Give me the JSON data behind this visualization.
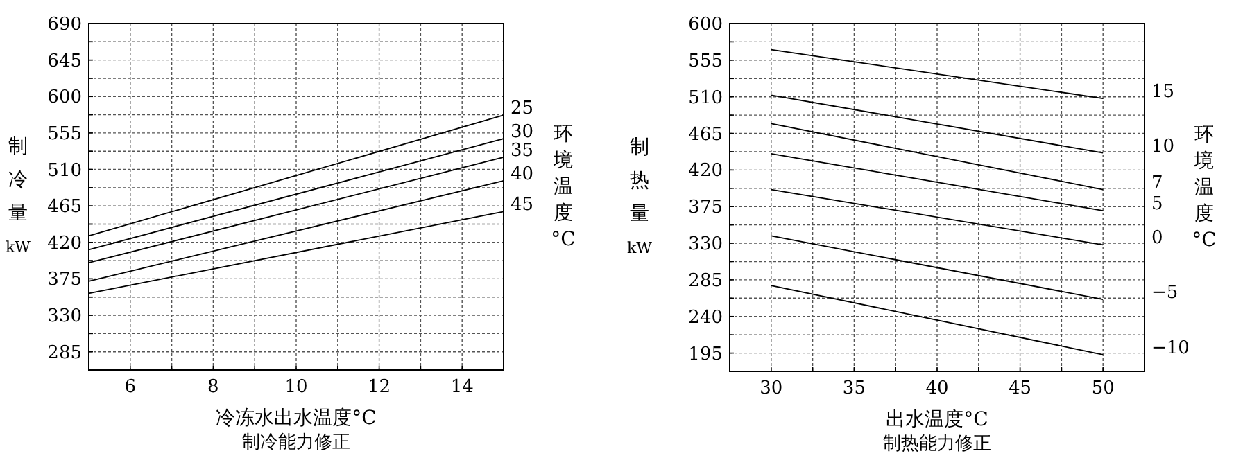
{
  "chart_data": [
    {
      "type": "line",
      "xlabel": "冷冻水出水温度°C",
      "ylabel": "制冷量kW",
      "legend_title": "环境温度°C",
      "annotations": [
        "制冷能力修正"
      ],
      "x": [
        5,
        15
      ],
      "series": [
        {
          "name": "25",
          "color": "#000000",
          "values": [
            428,
            577
          ]
        },
        {
          "name": "30",
          "color": "#000000",
          "values": [
            411,
            548
          ]
        },
        {
          "name": "35",
          "color": "#000000",
          "values": [
            395,
            525
          ]
        },
        {
          "name": "40",
          "color": "#000000",
          "values": [
            372,
            496
          ]
        },
        {
          "name": "45",
          "color": "#000000",
          "values": [
            357,
            458
          ]
        }
      ],
      "xlim": [
        5,
        15
      ],
      "ylim": [
        262.5,
        690
      ],
      "xticks": [
        6,
        {
          "value": 7,
          "label": null
        },
        8,
        {
          "value": 9,
          "label": null
        },
        10,
        {
          "value": 11,
          "label": null
        },
        12,
        {
          "value": 13,
          "label": null
        },
        14
      ],
      "yticks": [
        285,
        {
          "value": 307.5,
          "label": null
        },
        330,
        {
          "value": 352.5,
          "label": null
        },
        375,
        {
          "value": 397.5,
          "label": null
        },
        420,
        {
          "value": 442.5,
          "label": null
        },
        465,
        {
          "value": 487.5,
          "label": null
        },
        510,
        {
          "value": 532.5,
          "label": null
        },
        555,
        {
          "value": 577.5,
          "label": null
        },
        600,
        {
          "value": 622.5,
          "label": null
        },
        645,
        {
          "value": 667.5,
          "label": null
        },
        690
      ],
      "grid": true,
      "marker": "none",
      "line_style": "solid"
    },
    {
      "type": "line",
      "xlabel": "出水温度°C",
      "ylabel": "制热量kW",
      "legend_title": "环境温度°C",
      "annotations": [
        "制热能力修正"
      ],
      "x": [
        30,
        50
      ],
      "series": [
        {
          "name": "15",
          "color": "#000000",
          "values": [
            568,
            508
          ]
        },
        {
          "name": "10",
          "color": "#000000",
          "values": [
            512,
            441
          ]
        },
        {
          "name": "7",
          "color": "#000000",
          "values": [
            477,
            396
          ]
        },
        {
          "name": "5",
          "color": "#000000",
          "values": [
            440,
            370
          ]
        },
        {
          "name": "0",
          "color": "#000000",
          "values": [
            396,
            328
          ]
        },
        {
          "name": "−5",
          "color": "#000000",
          "values": [
            339,
            261
          ]
        },
        {
          "name": "−10",
          "color": "#000000",
          "values": [
            278,
            193
          ]
        }
      ],
      "xlim": [
        27.5,
        52.5
      ],
      "ylim": [
        172.5,
        600
      ],
      "xticks": [
        30,
        {
          "value": 32.5,
          "label": null
        },
        35,
        {
          "value": 37.5,
          "label": null
        },
        40,
        {
          "value": 42.5,
          "label": null
        },
        45,
        {
          "value": 47.5,
          "label": null
        },
        50
      ],
      "yticks": [
        195,
        {
          "value": 217.5,
          "label": null
        },
        240,
        {
          "value": 262.5,
          "label": null
        },
        285,
        {
          "value": 307.5,
          "label": null
        },
        330,
        {
          "value": 352.5,
          "label": null
        },
        375,
        {
          "value": 397.5,
          "label": null
        },
        420,
        {
          "value": 442.5,
          "label": null
        },
        465,
        {
          "value": 487.5,
          "label": null
        },
        510,
        {
          "value": 532.5,
          "label": null
        },
        555,
        {
          "value": 577.5,
          "label": null
        },
        600
      ],
      "grid": true,
      "marker": "none",
      "line_style": "solid"
    }
  ]
}
